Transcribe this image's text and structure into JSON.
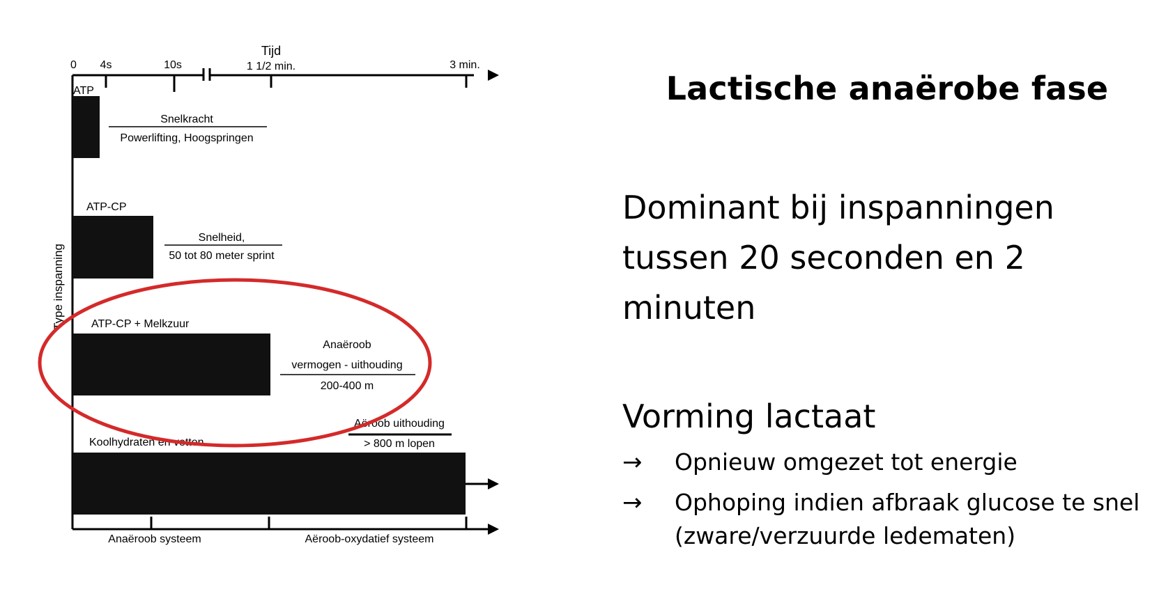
{
  "diagram": {
    "axis": {
      "time_label": "Tijd",
      "ticks": [
        "0",
        "4s",
        "10s",
        "1 1/2 min.",
        "3 min."
      ],
      "ylabel": "Type inspanning"
    },
    "systems": {
      "atp": {
        "label": "ATP",
        "activity_top": "Snelkracht",
        "activity_bottom": "Powerlifting, Hoogspringen"
      },
      "atp_cp": {
        "label": "ATP-CP",
        "activity_top": "Snelheid,",
        "activity_bottom": "50 tot 80 meter sprint"
      },
      "atp_cp_lactic": {
        "label": "ATP-CP + Melkzuur",
        "activity_line1": "Anaëroob",
        "activity_line2": "vermogen - uithouding",
        "activity_line3": "200-400 m"
      },
      "carbs_fats": {
        "label": "Koolhydraten en vetten",
        "activity_top": "Aëroob uithouding",
        "activity_bottom": "> 800 m lopen"
      }
    },
    "bottom_axis": {
      "anaerobic": "Anaëroob systeem",
      "aerobic": "Aëroob-oxydatief systeem"
    },
    "colors": {
      "bars": "#111111",
      "highlight": "#d42a2a"
    }
  },
  "slide": {
    "title": "Lactische anaërobe fase",
    "dominant_lines": [
      "Dominant bij inspanningen",
      "tussen 20 seconden en 2",
      "minuten"
    ],
    "lactate_heading": "Vorming lactaat",
    "bullet_icon": "right-arrow-icon",
    "bullets": [
      {
        "lines": [
          "Opnieuw omgezet tot energie"
        ]
      },
      {
        "lines": [
          "Ophoping indien afbraak glucose te snel",
          "(zware/verzuurde ledematen)"
        ]
      }
    ]
  }
}
